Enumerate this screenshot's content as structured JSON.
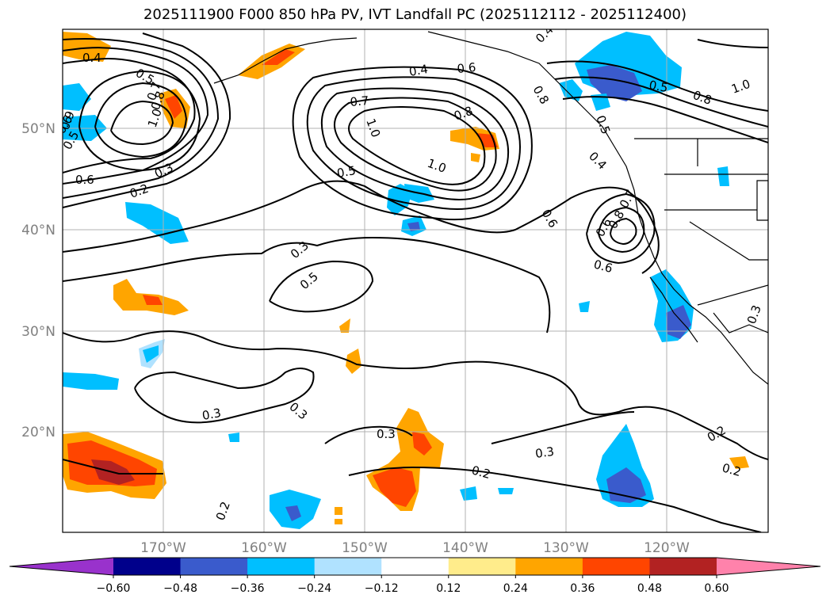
{
  "title": "2025111900 F000 850 hPa PV, IVT Landfall PC (2025112112 - 2025112400)",
  "map": {
    "lon_ticks": [
      "170°W",
      "160°W",
      "150°W",
      "140°W",
      "130°W",
      "120°W"
    ],
    "lat_ticks": [
      "50°N",
      "40°N",
      "30°N",
      "20°N"
    ],
    "contour_labels": [
      "0.4",
      "0.5",
      "0.5",
      "0.6",
      "1.0",
      "0.7",
      "0.8",
      "0.9",
      "0.3",
      "0.2",
      "0.6",
      "0.4",
      "0.6",
      "0.7",
      "1.0",
      "0.8",
      "1.0",
      "0.5",
      "0.5",
      "0.8",
      "0.6",
      "0.6",
      "0.8",
      "0.7",
      "1.0",
      "0.5",
      "0.4",
      "0.6",
      "0.8",
      "0.3",
      "0.5",
      "0.3",
      "0.3",
      "0.3",
      "0.3",
      "0.2",
      "0.2",
      "0.2",
      "0.2",
      "0.3",
      "0.4"
    ]
  },
  "colorbar": {
    "tick_labels": [
      "−0.60",
      "−0.48",
      "−0.36",
      "−0.24",
      "−0.12",
      "0.12",
      "0.24",
      "0.36",
      "0.48",
      "0.60"
    ],
    "colors": [
      "#9932cc",
      "#00008b",
      "#3a5bcc",
      "#00bfff",
      "#b0e2ff",
      "#ffffff",
      "#ffec8b",
      "#ffa500",
      "#ff4500",
      "#b22222",
      "#ff82ab"
    ]
  }
}
